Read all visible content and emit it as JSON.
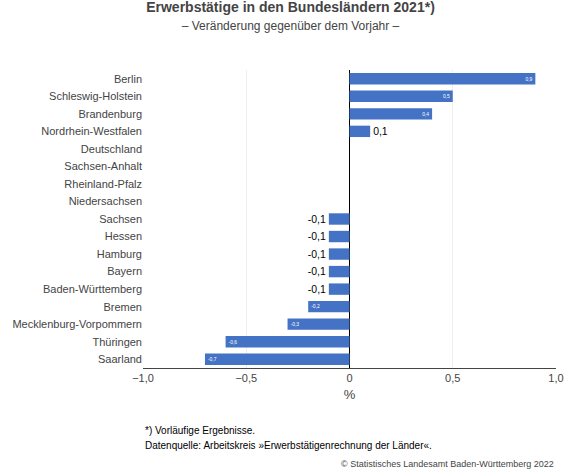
{
  "chart_data": {
    "type": "bar",
    "orientation": "horizontal",
    "title": "Erwerbstätige in den Bundesländern 2021*)",
    "subtitle": "– Veränderung gegenüber dem Vorjahr –",
    "categories": [
      "Berlin",
      "Schleswig-Holstein",
      "Brandenburg",
      "Nordrhein-Westfalen",
      "Deutschland",
      "Sachsen-Anhalt",
      "Rheinland-Pfalz",
      "Niedersachsen",
      "Sachsen",
      "Hessen",
      "Hamburg",
      "Bayern",
      "Baden-Württemberg",
      "Bremen",
      "Mecklenburg-Vorpommern",
      "Thüringen",
      "Saarland"
    ],
    "values": [
      0.9,
      0.5,
      0.4,
      0.1,
      0.0,
      0.0,
      0.0,
      0.0,
      -0.1,
      -0.1,
      -0.1,
      -0.1,
      -0.1,
      -0.2,
      -0.3,
      -0.6,
      -0.7
    ],
    "value_labels": [
      "0,9",
      "0,5",
      "0,4",
      "0,1",
      null,
      null,
      null,
      null,
      "-0,1",
      "-0,1",
      "-0,1",
      "-0,1",
      "-0,1",
      "-0,2",
      "-0,3",
      "-0,6",
      "-0,7"
    ],
    "data_labels": true,
    "color": "#4472C4",
    "xlabel": "%",
    "xlim": [
      -1.0,
      1.0
    ],
    "xticks": [
      {
        "value": -1.0,
        "label": "−1,0"
      },
      {
        "value": -0.5,
        "label": "−0,5"
      },
      0,
      {
        "value": 0.5,
        "label": "0,5"
      },
      {
        "value": 1.0,
        "label": "1,0"
      }
    ],
    "grid": true,
    "footnotes": [
      "*) Vorläufige Ergebnisse.",
      "Datenquelle: Arbeitskreis »Erwerbstätigenrechnung der Länder«."
    ],
    "copyright": "© Statistisches Landesamt Baden-Württemberg 2022"
  }
}
